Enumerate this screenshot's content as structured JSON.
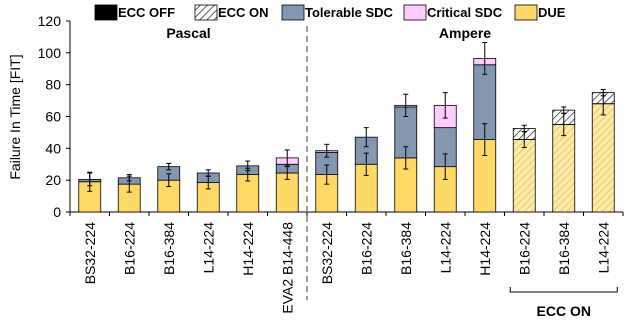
{
  "chart_data": {
    "type": "bar",
    "stacked": true,
    "ylabel": "Failure In Time [FIT]",
    "ylim": [
      0,
      120
    ],
    "yticks": [
      0,
      20,
      40,
      60,
      80,
      100,
      120
    ],
    "categories": [
      "BS32-224",
      "B16-224",
      "B16-384",
      "L14-224",
      "H14-224",
      "EVA2 B14-448",
      "BS32-224",
      "B16-224",
      "B16-384",
      "L14-224",
      "H14-224",
      "B16-224",
      "B16-384",
      "L14-224"
    ],
    "ecc_on": [
      false,
      false,
      false,
      false,
      false,
      false,
      false,
      false,
      false,
      false,
      false,
      true,
      true,
      true
    ],
    "series": [
      {
        "name": "DUE",
        "color": "#FFD966",
        "values": [
          19,
          17.5,
          20,
          18.5,
          23.5,
          24.5,
          23.5,
          30,
          34,
          28.5,
          45.5,
          45.5,
          55,
          68
        ]
      },
      {
        "name": "Tolerable SDC",
        "color": "#8497B0",
        "values": [
          1.5,
          4,
          8.5,
          6,
          5.5,
          5.5,
          14,
          17,
          32,
          24.5,
          47,
          0,
          0,
          0
        ]
      },
      {
        "name": "Critical SDC",
        "color": "#FFCCFF",
        "values": [
          0,
          0,
          0,
          0,
          0,
          4,
          1,
          0,
          1,
          14,
          4,
          0,
          0,
          0
        ]
      },
      {
        "name": "ECC ON",
        "pattern": "hatch",
        "values": [
          0,
          0,
          0,
          0,
          0,
          0,
          0,
          0,
          0,
          0,
          0,
          7,
          9,
          7
        ]
      },
      {
        "name": "ECC OFF",
        "color": "#000000",
        "values": [
          0,
          0,
          0,
          0,
          0,
          0,
          0,
          0,
          0,
          0,
          0,
          0,
          0,
          0
        ]
      }
    ],
    "errorbars": [
      {
        "due": [
          6,
          6
        ],
        "top": [
          4,
          4
        ]
      },
      {
        "due": [
          5,
          5
        ],
        "top": [
          2,
          2
        ]
      },
      {
        "due": [
          4,
          4
        ],
        "top": [
          2,
          2
        ]
      },
      {
        "due": [
          4,
          4
        ],
        "top": [
          2,
          2
        ]
      },
      {
        "due": [
          4,
          4
        ],
        "top": [
          3,
          3
        ]
      },
      {
        "due": [
          4,
          4
        ],
        "top": [
          5,
          5
        ]
      },
      {
        "due": [
          6,
          6
        ],
        "top": [
          4,
          4
        ]
      },
      {
        "due": [
          7,
          7
        ],
        "top": [
          6,
          6
        ]
      },
      {
        "due": [
          7,
          7
        ],
        "top": [
          7,
          7
        ]
      },
      {
        "due": [
          8,
          8
        ],
        "top": [
          8,
          8
        ]
      },
      {
        "due": [
          10,
          10
        ],
        "top": [
          10,
          10
        ]
      },
      {
        "due": [
          5,
          5
        ],
        "top": [
          2,
          2
        ]
      },
      {
        "due": [
          7,
          7
        ],
        "top": [
          2,
          2
        ]
      },
      {
        "due": [
          7,
          7
        ],
        "top": [
          2,
          2
        ]
      }
    ],
    "groups": [
      {
        "label": "Pascal",
        "from": 0,
        "to": 5
      },
      {
        "label": "Ampere",
        "from": 6,
        "to": 13
      }
    ],
    "bracket_label": "ECC ON",
    "legend": {
      "placement": "top",
      "entries": [
        "ECC OFF",
        "ECC ON",
        "Tolerable SDC",
        "Critical SDC",
        "DUE"
      ]
    }
  }
}
